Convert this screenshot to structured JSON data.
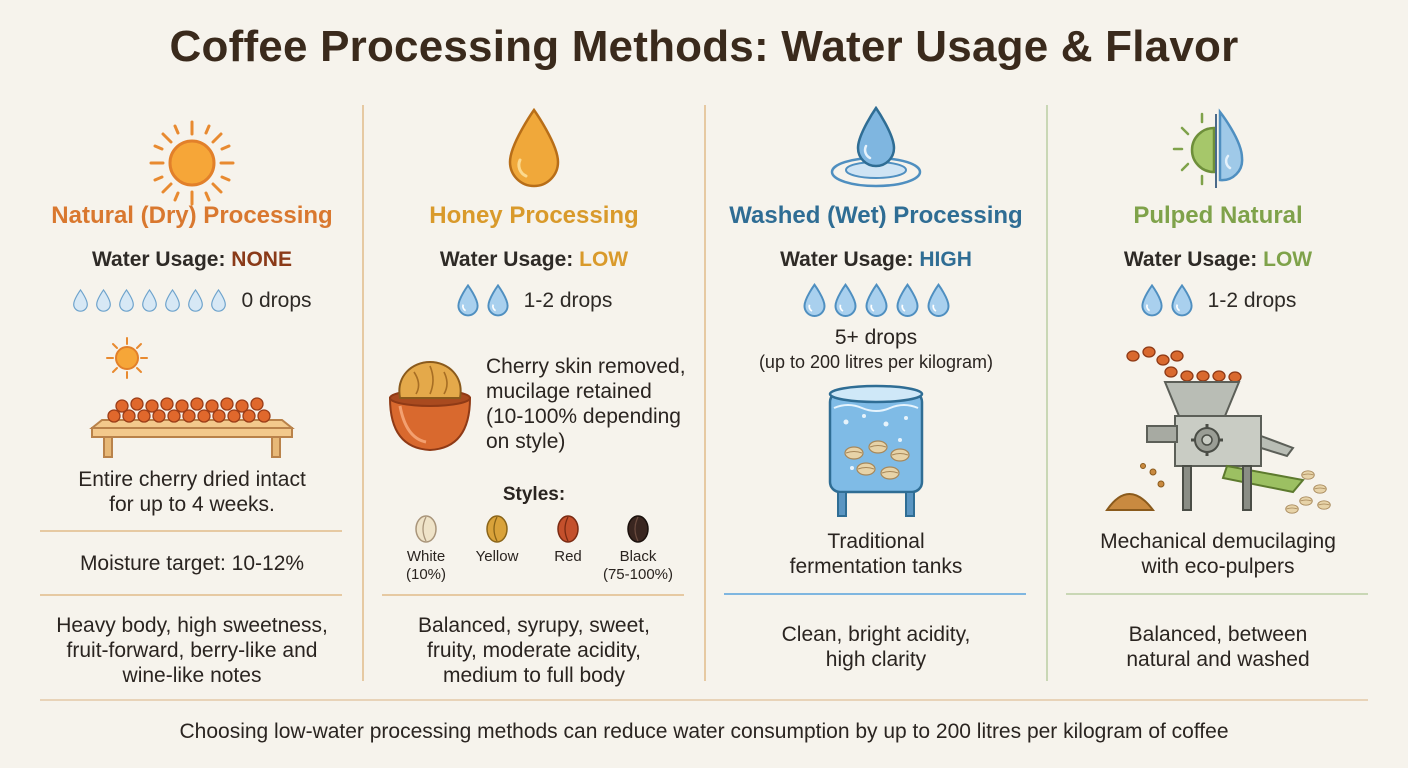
{
  "title": "Coffee Processing Methods: Water Usage & Flavor",
  "colors": {
    "natural": "#d9782f",
    "honey": "#d99a2b",
    "washed": "#2f6d94",
    "pulped": "#7fa24a",
    "drop": "#7fb6e0"
  },
  "columns": [
    {
      "name": "Natural (Dry) Processing",
      "icon": "sun-icon",
      "water_label": "Water Usage: ",
      "water_level": "NONE",
      "drops": "0 drops",
      "description": [
        "Entire cherry dried intact",
        "for up to 4 weeks."
      ],
      "moisture": "Moisture target: 10-12%",
      "flavor": [
        "Heavy body, high sweetness,",
        "fruit-forward, berry-like and",
        "wine-like notes"
      ]
    },
    {
      "name": "Honey Processing",
      "icon": "honey-drop-icon",
      "water_label": "Water Usage: ",
      "water_level": "LOW",
      "drops": "1-2 drops",
      "description": [
        "Cherry skin removed,",
        "mucilage retained",
        "(10-100% depending",
        "on style)"
      ],
      "styles_title": "Styles:",
      "styles": [
        {
          "name": "White",
          "note": "(10%)",
          "color": "#efe3c8"
        },
        {
          "name": "Yellow",
          "note": "",
          "color": "#d9a23a"
        },
        {
          "name": "Red",
          "note": "",
          "color": "#c4502c"
        },
        {
          "name": "Black",
          "note": "(75-100%)",
          "color": "#3a2620"
        }
      ],
      "flavor": [
        "Balanced, syrupy, sweet,",
        "fruity, moderate acidity,",
        "medium to full body"
      ]
    },
    {
      "name": "Washed (Wet) Processing",
      "icon": "water-drop-icon",
      "water_label": "Water Usage: ",
      "water_level": "HIGH",
      "drops": "5+ drops",
      "drops_note": "(up to 200 litres per kilogram)",
      "description": [
        "Traditional",
        "fermentation tanks"
      ],
      "flavor": [
        "Clean, bright acidity,",
        "high clarity"
      ]
    },
    {
      "name": "Pulped Natural",
      "icon": "sun-water-icon",
      "water_label": "Water Usage: ",
      "water_level": "LOW",
      "drops": "1-2 drops",
      "description": [
        "Mechanical demucilaging",
        "with eco-pulpers"
      ],
      "flavor": [
        "Balanced, between",
        "natural and washed"
      ]
    }
  ],
  "footer": "Choosing low-water processing methods can reduce water consumption by up to 200 litres per kilogram of coffee"
}
